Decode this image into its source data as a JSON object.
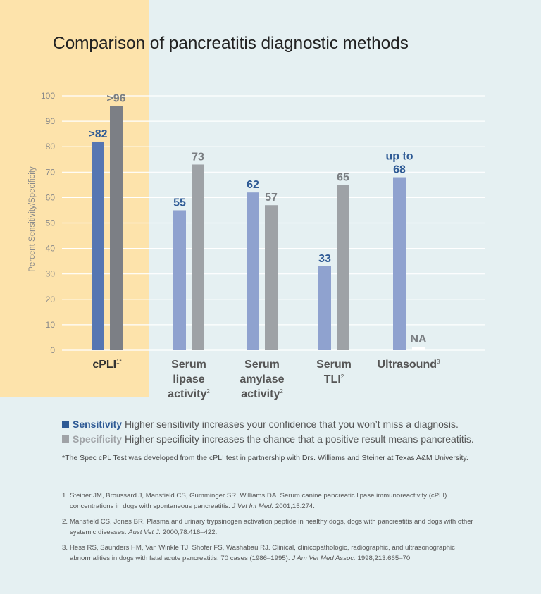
{
  "chart_data": {
    "type": "bar",
    "title": "Comparison of pancreatitis diagnostic methods",
    "xlabel": "",
    "ylabel": "Percent Sensitivity/Specificity",
    "ylim": [
      0,
      100
    ],
    "yticks": [
      0,
      10,
      20,
      30,
      40,
      50,
      60,
      70,
      80,
      90,
      100
    ],
    "grid": true,
    "legend_position": "bottom",
    "categories": [
      {
        "label_lines": [
          "cPLI"
        ],
        "sup": "1*",
        "highlighted": true
      },
      {
        "label_lines": [
          "Serum",
          "lipase",
          "activity"
        ],
        "sup": "2",
        "highlighted": false
      },
      {
        "label_lines": [
          "Serum",
          "amylase",
          "activity"
        ],
        "sup": "2",
        "highlighted": false
      },
      {
        "label_lines": [
          "Serum",
          "TLI"
        ],
        "sup": "2",
        "highlighted": false
      },
      {
        "label_lines": [
          "Ultrasound"
        ],
        "sup": "3",
        "highlighted": false
      }
    ],
    "series": [
      {
        "name": "Sensitivity",
        "values": [
          82,
          55,
          62,
          33,
          68
        ],
        "labels": [
          [
            ">82"
          ],
          [
            "55"
          ],
          [
            "62"
          ],
          [
            "33"
          ],
          [
            "up to",
            "68"
          ]
        ]
      },
      {
        "name": "Specificity",
        "values": [
          96,
          73,
          57,
          65,
          null
        ],
        "labels": [
          [
            ">96"
          ],
          [
            "73"
          ],
          [
            "57"
          ],
          [
            "65"
          ],
          [
            "NA"
          ]
        ]
      }
    ]
  },
  "colors": {
    "sensitivity": "#8fa2cf",
    "sensitivity_highlight": "#5676b2",
    "specificity": "#9ea2a6",
    "specificity_highlight": "#7c7f85",
    "sensitivity_text": "#2e5a95",
    "specificity_text": "#7a7e82",
    "highlight_panel": "#fde3ab",
    "background": "#e5f0f2"
  },
  "legend": [
    {
      "name": "Sensitivity",
      "description": "Higher sensitivity increases your confidence that you won’t miss a diagnosis."
    },
    {
      "name": "Specificity",
      "description": "Higher specificity increases the chance that a positive result means pancreatitis."
    }
  ],
  "footnote": "*The Spec cPL Test was developed from the cPLI test in partnership with Drs. Williams and Steiner at Texas A&M University.",
  "references": [
    {
      "num": "1.",
      "text": "Steiner JM, Broussard J, Mansfield CS, Gumminger SR, Williams DA. Serum canine pancreatic lipase immunoreactivity (cPLI) concentrations in dogs with spontaneous pancreatitis. ",
      "journal": "J Vet Int Med.",
      "tail": " 2001;15:274."
    },
    {
      "num": "2.",
      "text": "Mansfield CS, Jones BR. Plasma and urinary trypsinogen activation peptide in healthy dogs, dogs with pancreatitis and dogs with other systemic diseases. ",
      "journal": "Aust Vet J.",
      "tail": " 2000;78:416–422."
    },
    {
      "num": "3.",
      "text": "Hess RS, Saunders HM, Van Winkle TJ, Shofer FS, Washabau RJ. Clinical, clinicopathologic, radiographic, and ultrasonographic abnormalities in dogs with fatal acute pancreatitis: 70 cases (1986–1995). ",
      "journal": "J Am Vet Med Assoc.",
      "tail": " 1998;213:665–70."
    }
  ]
}
